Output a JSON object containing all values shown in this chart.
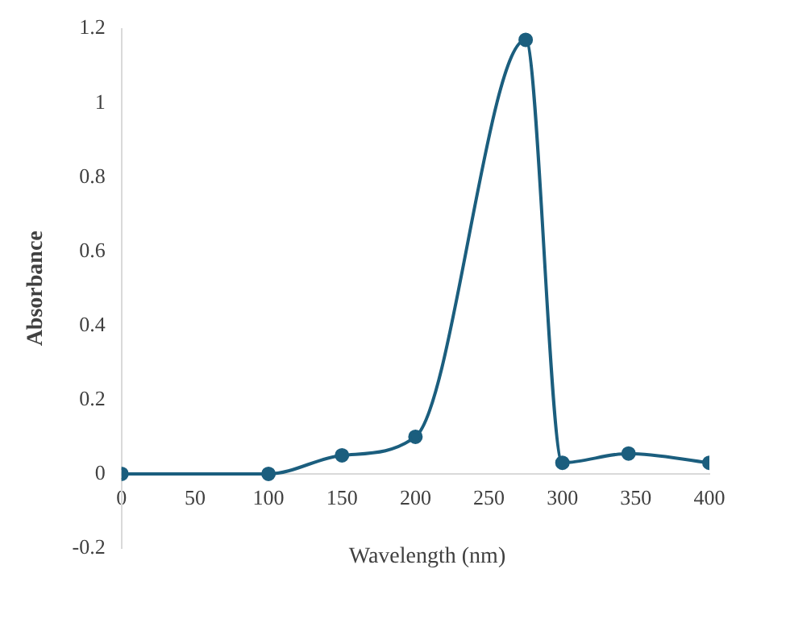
{
  "chart_data": {
    "type": "line",
    "xlabel": "Wavelength (nm)",
    "ylabel": "Absorbance",
    "x": [
      0,
      100,
      150,
      200,
      275,
      300,
      345,
      400
    ],
    "series": [
      {
        "color": "#1b5e7e",
        "values": [
          0,
          0,
          0.05,
          0.1,
          1.17,
          0.03,
          0.055,
          0.03
        ]
      }
    ],
    "xlim": [
      0,
      400
    ],
    "xticks": [
      0,
      50,
      100,
      150,
      200,
      250,
      300,
      350,
      400
    ],
    "ylim": [
      -0.2,
      1.2
    ],
    "yticks": [
      -0.2,
      0,
      0.2,
      0.4,
      0.6,
      0.8,
      1,
      1.2
    ],
    "grid": false,
    "legend": false,
    "marker": "circle",
    "line_style": "solid"
  }
}
